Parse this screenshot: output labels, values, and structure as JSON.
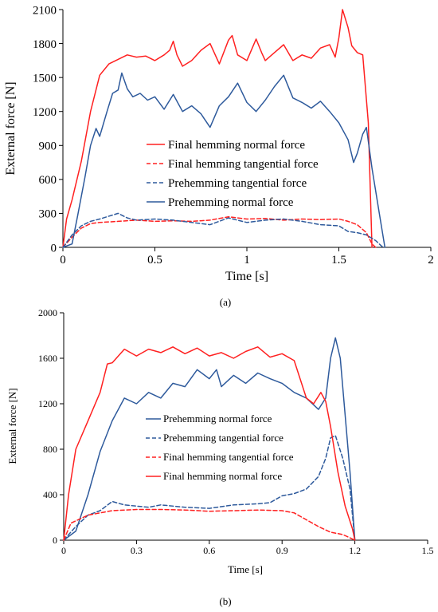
{
  "chart_data": [
    {
      "panel_label": "(a)",
      "type": "line",
      "xlabel": "Time [s]",
      "ylabel": "External force [N]",
      "xlim": [
        0,
        2
      ],
      "ylim": [
        0,
        2100
      ],
      "x_ticks": [
        0,
        0.5,
        1,
        1.5,
        2
      ],
      "x_tick_labels": [
        "0",
        "0.5",
        "1",
        "1.5",
        "2"
      ],
      "y_ticks": [
        0,
        300,
        600,
        900,
        1200,
        1500,
        1800,
        2100
      ],
      "y_tick_labels": [
        "0",
        "300",
        "600",
        "900",
        "1200",
        "1500",
        "1800",
        "2100"
      ],
      "grid": false,
      "legend_placement": "center",
      "series": [
        {
          "name": "Final hemming normal force",
          "color": "#ff2020",
          "dash": "solid",
          "points": [
            [
              0,
              0
            ],
            [
              0.02,
              250
            ],
            [
              0.05,
              420
            ],
            [
              0.1,
              760
            ],
            [
              0.15,
              1200
            ],
            [
              0.2,
              1520
            ],
            [
              0.25,
              1620
            ],
            [
              0.3,
              1660
            ],
            [
              0.35,
              1700
            ],
            [
              0.4,
              1680
            ],
            [
              0.45,
              1690
            ],
            [
              0.5,
              1650
            ],
            [
              0.55,
              1700
            ],
            [
              0.58,
              1740
            ],
            [
              0.6,
              1820
            ],
            [
              0.62,
              1700
            ],
            [
              0.65,
              1600
            ],
            [
              0.7,
              1650
            ],
            [
              0.75,
              1740
            ],
            [
              0.8,
              1800
            ],
            [
              0.85,
              1620
            ],
            [
              0.9,
              1830
            ],
            [
              0.92,
              1870
            ],
            [
              0.95,
              1700
            ],
            [
              1.0,
              1650
            ],
            [
              1.05,
              1840
            ],
            [
              1.08,
              1720
            ],
            [
              1.1,
              1650
            ],
            [
              1.15,
              1720
            ],
            [
              1.2,
              1790
            ],
            [
              1.25,
              1650
            ],
            [
              1.3,
              1700
            ],
            [
              1.35,
              1670
            ],
            [
              1.4,
              1760
            ],
            [
              1.45,
              1790
            ],
            [
              1.48,
              1680
            ],
            [
              1.5,
              1850
            ],
            [
              1.52,
              2100
            ],
            [
              1.55,
              1940
            ],
            [
              1.57,
              1780
            ],
            [
              1.6,
              1720
            ],
            [
              1.63,
              1700
            ],
            [
              1.66,
              1100
            ],
            [
              1.68,
              0
            ]
          ]
        },
        {
          "name": "Final hemming tangential force",
          "color": "#ff2020",
          "dash": "dashed",
          "points": [
            [
              0,
              0
            ],
            [
              0.05,
              90
            ],
            [
              0.1,
              170
            ],
            [
              0.15,
              210
            ],
            [
              0.2,
              220
            ],
            [
              0.3,
              230
            ],
            [
              0.4,
              240
            ],
            [
              0.5,
              230
            ],
            [
              0.6,
              235
            ],
            [
              0.7,
              230
            ],
            [
              0.8,
              240
            ],
            [
              0.9,
              270
            ],
            [
              1.0,
              250
            ],
            [
              1.1,
              255
            ],
            [
              1.2,
              240
            ],
            [
              1.3,
              250
            ],
            [
              1.4,
              245
            ],
            [
              1.5,
              250
            ],
            [
              1.55,
              230
            ],
            [
              1.6,
              200
            ],
            [
              1.65,
              130
            ],
            [
              1.68,
              30
            ],
            [
              1.7,
              0
            ]
          ]
        },
        {
          "name": "Prehemming tangential force",
          "color": "#2e5a9c",
          "dash": "dashed",
          "points": [
            [
              0,
              0
            ],
            [
              0.05,
              110
            ],
            [
              0.1,
              190
            ],
            [
              0.15,
              230
            ],
            [
              0.2,
              250
            ],
            [
              0.3,
              300
            ],
            [
              0.35,
              260
            ],
            [
              0.4,
              240
            ],
            [
              0.5,
              250
            ],
            [
              0.6,
              240
            ],
            [
              0.7,
              220
            ],
            [
              0.8,
              200
            ],
            [
              0.9,
              260
            ],
            [
              1.0,
              220
            ],
            [
              1.1,
              240
            ],
            [
              1.2,
              250
            ],
            [
              1.3,
              230
            ],
            [
              1.4,
              200
            ],
            [
              1.5,
              190
            ],
            [
              1.55,
              140
            ],
            [
              1.6,
              130
            ],
            [
              1.65,
              110
            ],
            [
              1.7,
              60
            ],
            [
              1.74,
              0
            ]
          ]
        },
        {
          "name": "Prehemming normal force",
          "color": "#2e5a9c",
          "dash": "solid",
          "points": [
            [
              0,
              0
            ],
            [
              0.05,
              30
            ],
            [
              0.08,
              280
            ],
            [
              0.12,
              620
            ],
            [
              0.15,
              900
            ],
            [
              0.18,
              1050
            ],
            [
              0.2,
              980
            ],
            [
              0.24,
              1200
            ],
            [
              0.27,
              1360
            ],
            [
              0.3,
              1390
            ],
            [
              0.32,
              1540
            ],
            [
              0.35,
              1400
            ],
            [
              0.38,
              1330
            ],
            [
              0.42,
              1360
            ],
            [
              0.46,
              1300
            ],
            [
              0.5,
              1330
            ],
            [
              0.55,
              1220
            ],
            [
              0.6,
              1350
            ],
            [
              0.65,
              1200
            ],
            [
              0.7,
              1250
            ],
            [
              0.75,
              1180
            ],
            [
              0.8,
              1060
            ],
            [
              0.85,
              1250
            ],
            [
              0.9,
              1330
            ],
            [
              0.95,
              1450
            ],
            [
              1.0,
              1280
            ],
            [
              1.05,
              1200
            ],
            [
              1.1,
              1300
            ],
            [
              1.15,
              1420
            ],
            [
              1.2,
              1520
            ],
            [
              1.25,
              1320
            ],
            [
              1.3,
              1280
            ],
            [
              1.35,
              1230
            ],
            [
              1.4,
              1290
            ],
            [
              1.45,
              1200
            ],
            [
              1.5,
              1100
            ],
            [
              1.55,
              950
            ],
            [
              1.58,
              750
            ],
            [
              1.6,
              830
            ],
            [
              1.63,
              1000
            ],
            [
              1.65,
              1060
            ],
            [
              1.68,
              700
            ],
            [
              1.72,
              300
            ],
            [
              1.75,
              0
            ]
          ]
        }
      ]
    },
    {
      "panel_label": "(b)",
      "type": "line",
      "xlabel": "Time [s]",
      "ylabel": "External force [N]",
      "xlim": [
        0,
        1.5
      ],
      "ylim": [
        0,
        2000
      ],
      "x_ticks": [
        0,
        0.3,
        0.6,
        0.9,
        1.2,
        1.5
      ],
      "x_tick_labels": [
        "0",
        "0.3",
        "0.6",
        "0.9",
        "1.2",
        "1.5"
      ],
      "y_ticks": [
        0,
        400,
        800,
        1200,
        1600,
        2000
      ],
      "y_tick_labels": [
        "0",
        "400",
        "800",
        "1200",
        "1600",
        "2000"
      ],
      "grid": false,
      "legend_placement": "center",
      "series": [
        {
          "name": "Prehemming normal force",
          "color": "#2e5a9c",
          "dash": "solid",
          "points": [
            [
              0,
              0
            ],
            [
              0.05,
              80
            ],
            [
              0.1,
              400
            ],
            [
              0.15,
              780
            ],
            [
              0.2,
              1050
            ],
            [
              0.25,
              1250
            ],
            [
              0.3,
              1200
            ],
            [
              0.35,
              1300
            ],
            [
              0.4,
              1250
            ],
            [
              0.45,
              1380
            ],
            [
              0.5,
              1350
            ],
            [
              0.55,
              1500
            ],
            [
              0.6,
              1420
            ],
            [
              0.63,
              1500
            ],
            [
              0.65,
              1350
            ],
            [
              0.7,
              1450
            ],
            [
              0.75,
              1380
            ],
            [
              0.8,
              1470
            ],
            [
              0.85,
              1420
            ],
            [
              0.9,
              1380
            ],
            [
              0.95,
              1300
            ],
            [
              1.0,
              1250
            ],
            [
              1.05,
              1150
            ],
            [
              1.08,
              1250
            ],
            [
              1.1,
              1600
            ],
            [
              1.12,
              1780
            ],
            [
              1.14,
              1600
            ],
            [
              1.16,
              1100
            ],
            [
              1.18,
              600
            ],
            [
              1.2,
              0
            ]
          ]
        },
        {
          "name": "Prehemming tangential force",
          "color": "#2e5a9c",
          "dash": "dashed",
          "points": [
            [
              0,
              0
            ],
            [
              0.05,
              120
            ],
            [
              0.1,
              220
            ],
            [
              0.15,
              260
            ],
            [
              0.2,
              340
            ],
            [
              0.25,
              310
            ],
            [
              0.3,
              300
            ],
            [
              0.35,
              290
            ],
            [
              0.4,
              310
            ],
            [
              0.5,
              290
            ],
            [
              0.6,
              280
            ],
            [
              0.7,
              310
            ],
            [
              0.8,
              320
            ],
            [
              0.85,
              330
            ],
            [
              0.9,
              390
            ],
            [
              0.95,
              410
            ],
            [
              1.0,
              450
            ],
            [
              1.05,
              560
            ],
            [
              1.08,
              720
            ],
            [
              1.1,
              900
            ],
            [
              1.12,
              920
            ],
            [
              1.15,
              720
            ],
            [
              1.18,
              450
            ],
            [
              1.2,
              0
            ]
          ]
        },
        {
          "name": "Final hemming tangential force",
          "color": "#ff2020",
          "dash": "dashed",
          "points": [
            [
              0,
              0
            ],
            [
              0.03,
              150
            ],
            [
              0.1,
              220
            ],
            [
              0.2,
              260
            ],
            [
              0.3,
              270
            ],
            [
              0.4,
              270
            ],
            [
              0.5,
              265
            ],
            [
              0.6,
              255
            ],
            [
              0.7,
              260
            ],
            [
              0.8,
              265
            ],
            [
              0.9,
              260
            ],
            [
              0.95,
              240
            ],
            [
              1.0,
              180
            ],
            [
              1.05,
              120
            ],
            [
              1.1,
              70
            ],
            [
              1.15,
              50
            ],
            [
              1.18,
              20
            ],
            [
              1.2,
              0
            ]
          ]
        },
        {
          "name": "Final hemming normal force",
          "color": "#ff2020",
          "dash": "solid",
          "points": [
            [
              0,
              0
            ],
            [
              0.02,
              400
            ],
            [
              0.05,
              800
            ],
            [
              0.1,
              1050
            ],
            [
              0.15,
              1300
            ],
            [
              0.18,
              1550
            ],
            [
              0.2,
              1560
            ],
            [
              0.25,
              1680
            ],
            [
              0.3,
              1620
            ],
            [
              0.35,
              1680
            ],
            [
              0.4,
              1650
            ],
            [
              0.45,
              1700
            ],
            [
              0.5,
              1640
            ],
            [
              0.55,
              1690
            ],
            [
              0.6,
              1620
            ],
            [
              0.65,
              1650
            ],
            [
              0.7,
              1600
            ],
            [
              0.75,
              1660
            ],
            [
              0.8,
              1700
            ],
            [
              0.85,
              1610
            ],
            [
              0.9,
              1640
            ],
            [
              0.95,
              1580
            ],
            [
              1.0,
              1250
            ],
            [
              1.03,
              1200
            ],
            [
              1.06,
              1300
            ],
            [
              1.08,
              1220
            ],
            [
              1.1,
              1000
            ],
            [
              1.13,
              600
            ],
            [
              1.16,
              300
            ],
            [
              1.19,
              100
            ],
            [
              1.2,
              0
            ]
          ]
        }
      ]
    }
  ]
}
